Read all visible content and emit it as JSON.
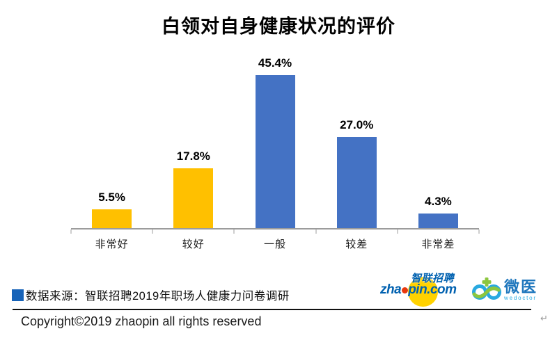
{
  "title": "白领对自身健康状况的评价",
  "chart_data": {
    "type": "bar",
    "title": "白领对自身健康状况的评价",
    "categories": [
      "非常好",
      "较好",
      "一般",
      "较差",
      "非常差"
    ],
    "values": [
      5.5,
      17.8,
      45.4,
      27.0,
      4.3
    ],
    "value_labels": [
      "5.5%",
      "17.8%",
      "45.4%",
      "27.0%",
      "4.3%"
    ],
    "bar_colors": [
      "#FFC000",
      "#FFC000",
      "#4472C4",
      "#4472C4",
      "#4472C4"
    ],
    "xlabel": "",
    "ylabel": "",
    "ylim": [
      0,
      54.5
    ],
    "grid": false,
    "legend": false,
    "axis_color": "#9c9c9c"
  },
  "source": {
    "marker_color": "#1763B8",
    "text": "数据来源：智联招聘2019年职场人健康力问卷调研"
  },
  "logos": {
    "zhaopin": {
      "cn": "智联招聘",
      "en_prefix": "zha",
      "en_suffix": "pin.com",
      "brand_blue": "#0061B0",
      "brand_yellow": "#FFD200",
      "brand_red": "#E8380D"
    },
    "wedoctor": {
      "cn": "微医",
      "en": "wedoctor",
      "brand_blue": "#1C75BC",
      "brand_light_blue": "#29ABE2",
      "brand_green": "#8CC63F"
    }
  },
  "footer": {
    "copyright": "Copyright©2019 zhaopin all rights reserved",
    "return_mark": "↵"
  }
}
